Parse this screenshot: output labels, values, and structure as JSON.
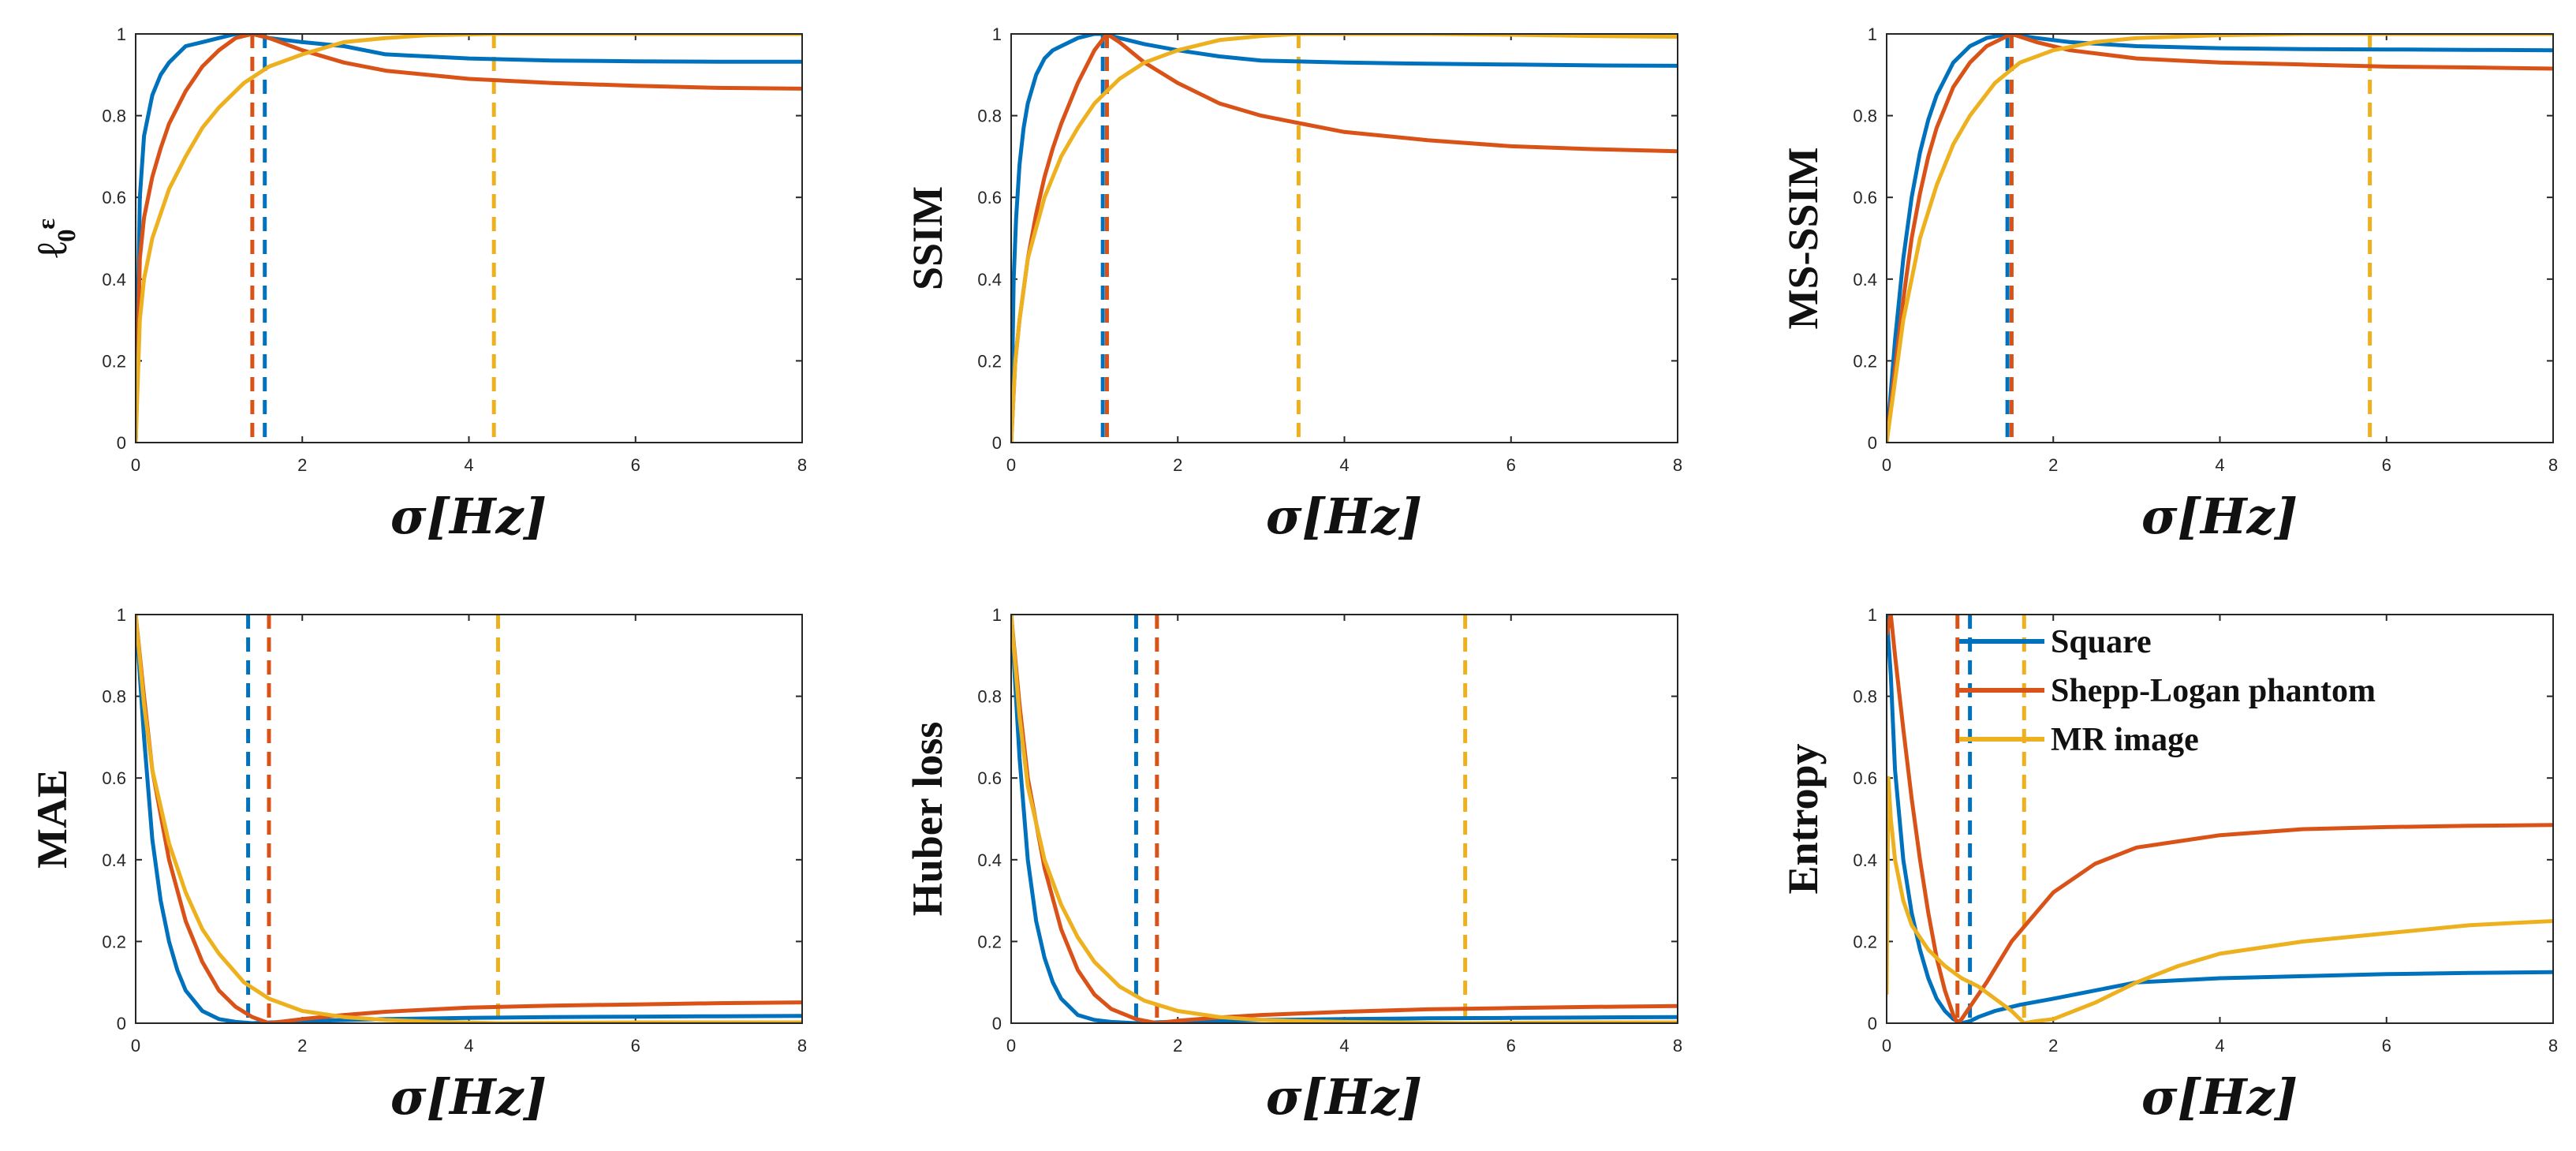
{
  "figure": {
    "title": ""
  },
  "colors": {
    "Square": "#0072BD",
    "Shepp-Logan phantom": "#D95319",
    "MR image": "#EDB120"
  },
  "chart_data": [
    {
      "type": "line",
      "id": "l0",
      "ylabel": "ℓ₀ᵋ",
      "xlabel": "σ[Hz]",
      "xlim": [
        0,
        8
      ],
      "ylim": [
        0,
        1
      ],
      "xticks": [
        0,
        2,
        4,
        6,
        8
      ],
      "yticks": [
        0,
        0.2,
        0.4,
        0.6,
        0.8,
        1
      ],
      "series": [
        {
          "name": "Square",
          "x": [
            0,
            0.05,
            0.1,
            0.2,
            0.3,
            0.4,
            0.5,
            0.6,
            0.8,
            1.0,
            1.2,
            1.4,
            1.6,
            2.0,
            2.5,
            3.0,
            3.5,
            4,
            5,
            6,
            7,
            8
          ],
          "y": [
            0,
            0.6,
            0.75,
            0.85,
            0.9,
            0.93,
            0.95,
            0.97,
            0.98,
            0.99,
            1.0,
            1.0,
            0.99,
            0.98,
            0.97,
            0.95,
            0.945,
            0.94,
            0.935,
            0.933,
            0.932,
            0.932
          ]
        },
        {
          "name": "Shepp-Logan phantom",
          "x": [
            0,
            0.05,
            0.1,
            0.2,
            0.3,
            0.4,
            0.5,
            0.6,
            0.8,
            1.0,
            1.2,
            1.4,
            1.6,
            2.0,
            2.5,
            3.0,
            4,
            5,
            6,
            7,
            8
          ],
          "y": [
            0,
            0.45,
            0.55,
            0.65,
            0.72,
            0.78,
            0.82,
            0.86,
            0.92,
            0.96,
            0.99,
            1.0,
            0.99,
            0.96,
            0.93,
            0.91,
            0.89,
            0.88,
            0.873,
            0.868,
            0.866
          ]
        },
        {
          "name": "MR image",
          "x": [
            0,
            0.05,
            0.1,
            0.2,
            0.4,
            0.6,
            0.8,
            1.0,
            1.3,
            1.6,
            2.0,
            2.5,
            3.0,
            3.5,
            4.3,
            5,
            6,
            7,
            8
          ],
          "y": [
            0,
            0.3,
            0.4,
            0.5,
            0.62,
            0.7,
            0.77,
            0.82,
            0.88,
            0.92,
            0.95,
            0.98,
            0.99,
            0.997,
            1.0,
            1.0,
            1.0,
            1.0,
            1.0
          ]
        }
      ],
      "vlines": [
        {
          "series": "Square",
          "x": 1.55
        },
        {
          "series": "Shepp-Logan phantom",
          "x": 1.4
        },
        {
          "series": "MR image",
          "x": 4.3
        }
      ]
    },
    {
      "type": "line",
      "id": "ssim",
      "ylabel": "SSIM",
      "xlabel": "σ[Hz]",
      "xlim": [
        0,
        8
      ],
      "ylim": [
        0,
        1
      ],
      "xticks": [
        0,
        2,
        4,
        6,
        8
      ],
      "yticks": [
        0,
        0.2,
        0.4,
        0.6,
        0.8,
        1
      ],
      "series": [
        {
          "name": "Square",
          "x": [
            0,
            0.03,
            0.06,
            0.1,
            0.15,
            0.2,
            0.3,
            0.4,
            0.5,
            0.6,
            0.8,
            1.0,
            1.1,
            1.3,
            1.6,
            2.0,
            2.5,
            3.0,
            4,
            5,
            6,
            7,
            8
          ],
          "y": [
            0,
            0.4,
            0.55,
            0.68,
            0.77,
            0.83,
            0.9,
            0.94,
            0.96,
            0.97,
            0.99,
            1.0,
            1.0,
            0.99,
            0.975,
            0.96,
            0.945,
            0.935,
            0.93,
            0.927,
            0.925,
            0.923,
            0.922
          ]
        },
        {
          "name": "Shepp-Logan phantom",
          "x": [
            0,
            0.05,
            0.1,
            0.2,
            0.3,
            0.4,
            0.5,
            0.6,
            0.8,
            1.0,
            1.15,
            1.3,
            1.6,
            2.0,
            2.5,
            3.0,
            3.5,
            4,
            5,
            6,
            7,
            8
          ],
          "y": [
            0,
            0.2,
            0.3,
            0.45,
            0.56,
            0.65,
            0.72,
            0.78,
            0.88,
            0.96,
            1.0,
            0.98,
            0.93,
            0.88,
            0.83,
            0.8,
            0.78,
            0.76,
            0.74,
            0.725,
            0.718,
            0.713
          ]
        },
        {
          "name": "MR image",
          "x": [
            0,
            0.05,
            0.1,
            0.2,
            0.4,
            0.6,
            0.8,
            1.0,
            1.3,
            1.6,
            2.0,
            2.5,
            3.0,
            3.45,
            4,
            5,
            6,
            7,
            8
          ],
          "y": [
            0,
            0.2,
            0.3,
            0.45,
            0.6,
            0.7,
            0.77,
            0.83,
            0.89,
            0.93,
            0.96,
            0.985,
            0.995,
            1.0,
            1.0,
            1.0,
            0.998,
            0.995,
            0.993
          ]
        }
      ],
      "vlines": [
        {
          "series": "Square",
          "x": 1.1
        },
        {
          "series": "Shepp-Logan phantom",
          "x": 1.15
        },
        {
          "series": "MR image",
          "x": 3.45
        }
      ]
    },
    {
      "type": "line",
      "id": "msssim",
      "ylabel": "MS-SSIM",
      "xlabel": "σ[Hz]",
      "xlim": [
        0,
        8
      ],
      "ylim": [
        0,
        1
      ],
      "xticks": [
        0,
        2,
        4,
        6,
        8
      ],
      "yticks": [
        0,
        0.2,
        0.4,
        0.6,
        0.8,
        1
      ],
      "series": [
        {
          "name": "Square",
          "x": [
            0,
            0.1,
            0.2,
            0.3,
            0.4,
            0.5,
            0.6,
            0.8,
            1.0,
            1.2,
            1.45,
            1.8,
            2.2,
            3,
            4,
            5,
            6,
            7,
            8
          ],
          "y": [
            0,
            0.25,
            0.45,
            0.6,
            0.71,
            0.79,
            0.85,
            0.93,
            0.97,
            0.99,
            1.0,
            0.99,
            0.98,
            0.97,
            0.965,
            0.963,
            0.962,
            0.961,
            0.96
          ]
        },
        {
          "name": "Shepp-Logan phantom",
          "x": [
            0,
            0.1,
            0.2,
            0.3,
            0.4,
            0.5,
            0.6,
            0.8,
            1.0,
            1.2,
            1.5,
            1.8,
            2.2,
            3,
            4,
            5,
            6,
            7,
            8
          ],
          "y": [
            0,
            0.18,
            0.35,
            0.5,
            0.61,
            0.7,
            0.77,
            0.87,
            0.93,
            0.97,
            1.0,
            0.98,
            0.96,
            0.94,
            0.93,
            0.925,
            0.92,
            0.918,
            0.915
          ]
        },
        {
          "name": "MR image",
          "x": [
            0,
            0.1,
            0.2,
            0.4,
            0.6,
            0.8,
            1.0,
            1.3,
            1.6,
            2.0,
            2.5,
            3.0,
            4,
            5,
            5.8,
            6.5,
            7,
            8
          ],
          "y": [
            0,
            0.15,
            0.3,
            0.5,
            0.63,
            0.73,
            0.8,
            0.88,
            0.93,
            0.96,
            0.98,
            0.99,
            0.997,
            1.0,
            1.0,
            1.0,
            1.0,
            1.0
          ]
        }
      ],
      "vlines": [
        {
          "series": "Square",
          "x": 1.45
        },
        {
          "series": "Shepp-Logan phantom",
          "x": 1.5
        },
        {
          "series": "MR image",
          "x": 5.8
        }
      ]
    },
    {
      "type": "line",
      "id": "mae",
      "ylabel": "MAE",
      "xlabel": "σ[Hz]",
      "xlim": [
        0,
        8
      ],
      "ylim": [
        0,
        1
      ],
      "xticks": [
        0,
        2,
        4,
        6,
        8
      ],
      "yticks": [
        0,
        0.2,
        0.4,
        0.6,
        0.8,
        1
      ],
      "series": [
        {
          "name": "Square",
          "x": [
            0,
            0.1,
            0.2,
            0.3,
            0.4,
            0.5,
            0.6,
            0.8,
            1.0,
            1.2,
            1.4,
            2,
            3,
            4,
            5,
            6,
            7,
            8
          ],
          "y": [
            1,
            0.7,
            0.45,
            0.3,
            0.2,
            0.13,
            0.08,
            0.03,
            0.01,
            0.003,
            0,
            0.005,
            0.01,
            0.013,
            0.015,
            0.016,
            0.017,
            0.018
          ]
        },
        {
          "name": "Shepp-Logan phantom",
          "x": [
            0,
            0.1,
            0.2,
            0.4,
            0.6,
            0.8,
            1.0,
            1.2,
            1.4,
            1.6,
            2,
            2.5,
            3,
            4,
            5,
            6,
            7,
            8
          ],
          "y": [
            1,
            0.8,
            0.62,
            0.4,
            0.25,
            0.15,
            0.08,
            0.04,
            0.015,
            0,
            0.01,
            0.02,
            0.028,
            0.038,
            0.043,
            0.046,
            0.049,
            0.051
          ]
        },
        {
          "name": "MR image",
          "x": [
            0,
            0.1,
            0.2,
            0.4,
            0.6,
            0.8,
            1.0,
            1.3,
            1.6,
            2.0,
            2.5,
            3.0,
            3.5,
            4.35,
            5,
            6,
            7,
            8
          ],
          "y": [
            1,
            0.78,
            0.62,
            0.44,
            0.32,
            0.23,
            0.17,
            0.1,
            0.06,
            0.03,
            0.015,
            0.008,
            0.004,
            0,
            0.001,
            0.002,
            0.002,
            0.002
          ]
        }
      ],
      "vlines": [
        {
          "series": "Square",
          "x": 1.35
        },
        {
          "series": "Shepp-Logan phantom",
          "x": 1.6
        },
        {
          "series": "MR image",
          "x": 4.35
        }
      ]
    },
    {
      "type": "line",
      "id": "huber",
      "ylabel": "Huber loss",
      "xlabel": "σ[Hz]",
      "xlim": [
        0,
        8
      ],
      "ylim": [
        0,
        1
      ],
      "xticks": [
        0,
        2,
        4,
        6,
        8
      ],
      "yticks": [
        0,
        0.2,
        0.4,
        0.6,
        0.8,
        1
      ],
      "series": [
        {
          "name": "Square",
          "x": [
            0,
            0.1,
            0.2,
            0.3,
            0.4,
            0.5,
            0.6,
            0.8,
            1.0,
            1.2,
            1.5,
            2,
            3,
            4,
            5,
            6,
            7,
            8
          ],
          "y": [
            1,
            0.65,
            0.4,
            0.25,
            0.16,
            0.1,
            0.06,
            0.02,
            0.008,
            0.003,
            0,
            0.004,
            0.008,
            0.01,
            0.012,
            0.013,
            0.014,
            0.015
          ]
        },
        {
          "name": "Shepp-Logan phantom",
          "x": [
            0,
            0.1,
            0.2,
            0.4,
            0.6,
            0.8,
            1.0,
            1.2,
            1.5,
            1.75,
            2,
            2.5,
            3,
            4,
            5,
            6,
            7,
            8
          ],
          "y": [
            1,
            0.78,
            0.6,
            0.38,
            0.23,
            0.13,
            0.07,
            0.035,
            0.01,
            0,
            0.006,
            0.014,
            0.02,
            0.028,
            0.034,
            0.037,
            0.04,
            0.042
          ]
        },
        {
          "name": "MR image",
          "x": [
            0,
            0.1,
            0.2,
            0.4,
            0.6,
            0.8,
            1.0,
            1.3,
            1.6,
            2.0,
            2.5,
            3.0,
            3.5,
            4.0,
            5.45,
            6,
            7,
            8
          ],
          "y": [
            1,
            0.75,
            0.58,
            0.4,
            0.29,
            0.21,
            0.15,
            0.09,
            0.055,
            0.03,
            0.015,
            0.008,
            0.005,
            0.003,
            0,
            0.001,
            0.002,
            0.002
          ]
        }
      ],
      "vlines": [
        {
          "series": "Square",
          "x": 1.5
        },
        {
          "series": "Shepp-Logan phantom",
          "x": 1.75
        },
        {
          "series": "MR image",
          "x": 5.45
        }
      ]
    },
    {
      "type": "line",
      "id": "entropy",
      "ylabel": "Entropy",
      "xlabel": "σ[Hz]",
      "xlim": [
        0,
        8
      ],
      "ylim": [
        0,
        1
      ],
      "xticks": [
        0,
        2,
        4,
        6,
        8
      ],
      "yticks": [
        0,
        0.2,
        0.4,
        0.6,
        0.8,
        1
      ],
      "legend": {
        "position": "top-right",
        "entries": [
          "Square",
          "Shepp-Logan phantom",
          "MR image"
        ]
      },
      "series": [
        {
          "name": "Square",
          "x": [
            0,
            0.05,
            0.1,
            0.2,
            0.3,
            0.4,
            0.5,
            0.6,
            0.7,
            0.8,
            0.9,
            1.0,
            1.1,
            1.3,
            1.6,
            2.0,
            2.5,
            3.0,
            4,
            5,
            6,
            7,
            8
          ],
          "y": [
            1,
            0.85,
            0.62,
            0.4,
            0.27,
            0.18,
            0.11,
            0.06,
            0.03,
            0.01,
            0,
            0.005,
            0.015,
            0.03,
            0.045,
            0.06,
            0.08,
            0.1,
            0.11,
            0.115,
            0.12,
            0.123,
            0.125
          ]
        },
        {
          "name": "Shepp-Logan phantom",
          "x": [
            0,
            0.05,
            0.1,
            0.2,
            0.3,
            0.4,
            0.5,
            0.6,
            0.7,
            0.8,
            0.85,
            0.9,
            1.0,
            1.2,
            1.5,
            2.0,
            2.5,
            3.0,
            4,
            5,
            6,
            7,
            8
          ],
          "y": [
            0.95,
            1.0,
            0.9,
            0.72,
            0.55,
            0.4,
            0.27,
            0.16,
            0.08,
            0.02,
            0,
            0.01,
            0.04,
            0.1,
            0.2,
            0.32,
            0.39,
            0.43,
            0.46,
            0.475,
            0.48,
            0.483,
            0.485
          ]
        },
        {
          "name": "MR image",
          "x": [
            0,
            0.02,
            0.05,
            0.1,
            0.2,
            0.3,
            0.5,
            0.7,
            0.9,
            1.1,
            1.3,
            1.5,
            1.65,
            1.8,
            2.0,
            2.5,
            3.0,
            3.5,
            4,
            5,
            6,
            7,
            8
          ],
          "y": [
            0.07,
            0.6,
            0.5,
            0.4,
            0.3,
            0.24,
            0.18,
            0.14,
            0.11,
            0.09,
            0.06,
            0.03,
            0,
            0.005,
            0.01,
            0.05,
            0.1,
            0.14,
            0.17,
            0.2,
            0.22,
            0.24,
            0.25
          ]
        }
      ],
      "vlines": [
        {
          "series": "Square",
          "x": 1.0
        },
        {
          "series": "Shepp-Logan phantom",
          "x": 0.85
        },
        {
          "series": "MR image",
          "x": 1.65
        }
      ]
    }
  ]
}
